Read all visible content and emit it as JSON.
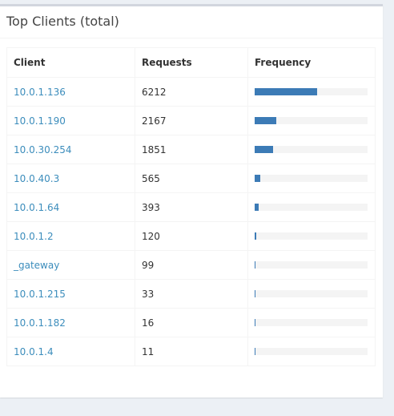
{
  "box": {
    "title": "Top Clients (total)"
  },
  "table": {
    "headers": {
      "client": "Client",
      "requests": "Requests",
      "frequency": "Frequency"
    },
    "max_requests": 11250,
    "rows": [
      {
        "client": "10.0.1.136",
        "requests": "6212",
        "value": 6212
      },
      {
        "client": "10.0.1.190",
        "requests": "2167",
        "value": 2167
      },
      {
        "client": "10.0.30.254",
        "requests": "1851",
        "value": 1851
      },
      {
        "client": "10.0.40.3",
        "requests": "565",
        "value": 565
      },
      {
        "client": "10.0.1.64",
        "requests": "393",
        "value": 393
      },
      {
        "client": "10.0.1.2",
        "requests": "120",
        "value": 120
      },
      {
        "client": "_gateway",
        "requests": "99",
        "value": 99
      },
      {
        "client": "10.0.1.215",
        "requests": "33",
        "value": 33
      },
      {
        "client": "10.0.1.182",
        "requests": "16",
        "value": 16
      },
      {
        "client": "10.0.1.4",
        "requests": "11",
        "value": 11
      }
    ]
  },
  "colors": {
    "link": "#3c8dbc",
    "bar": "#3c7bb6",
    "bar_track": "#f4f4f4"
  }
}
